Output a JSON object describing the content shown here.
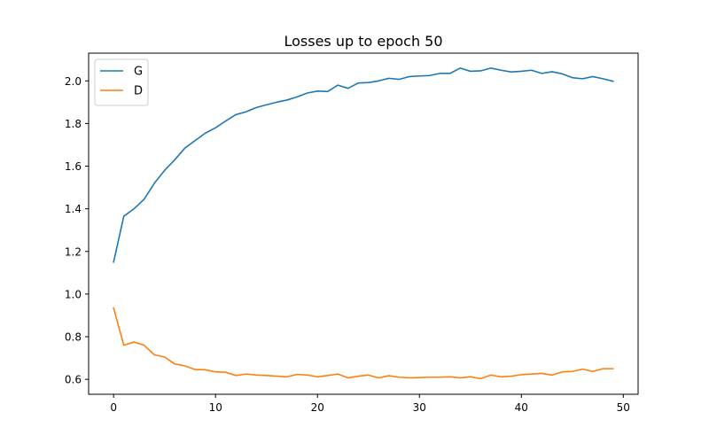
{
  "chart_data": {
    "type": "line",
    "title": "Losses up to epoch 50",
    "xlabel": "",
    "ylabel": "",
    "xlim": [
      -2.45,
      51.45
    ],
    "ylim": [
      0.53,
      2.13
    ],
    "xticks": [
      0,
      10,
      20,
      30,
      40,
      50
    ],
    "yticks": [
      0.6,
      0.8,
      1.0,
      1.2,
      1.4,
      1.6,
      1.8,
      2.0
    ],
    "ytick_labels": [
      "0.6",
      "0.8",
      "1.0",
      "1.2",
      "1.4",
      "1.6",
      "1.8",
      "2.0"
    ],
    "grid": false,
    "legend_position": "upper-left",
    "x": [
      0,
      1,
      2,
      3,
      4,
      5,
      6,
      7,
      8,
      9,
      10,
      11,
      12,
      13,
      14,
      15,
      16,
      17,
      18,
      19,
      20,
      21,
      22,
      23,
      24,
      25,
      26,
      27,
      28,
      29,
      30,
      31,
      32,
      33,
      34,
      35,
      36,
      37,
      38,
      39,
      40,
      41,
      42,
      43,
      44,
      45,
      46,
      47,
      48,
      49
    ],
    "series": [
      {
        "name": "G",
        "color": "#1f77b4",
        "values": [
          1.15,
          1.365,
          1.4,
          1.445,
          1.52,
          1.58,
          1.63,
          1.685,
          1.72,
          1.755,
          1.78,
          1.812,
          1.842,
          1.855,
          1.875,
          1.888,
          1.9,
          1.91,
          1.925,
          1.943,
          1.952,
          1.95,
          1.98,
          1.965,
          1.99,
          1.992,
          2.0,
          2.012,
          2.007,
          2.02,
          2.023,
          2.025,
          2.035,
          2.035,
          2.06,
          2.045,
          2.047,
          2.06,
          2.05,
          2.042,
          2.045,
          2.05,
          2.035,
          2.043,
          2.033,
          2.015,
          2.01,
          2.02,
          2.01,
          1.998
        ]
      },
      {
        "name": "D",
        "color": "#ff7f0e",
        "values": [
          0.935,
          0.76,
          0.775,
          0.76,
          0.715,
          0.705,
          0.672,
          0.663,
          0.646,
          0.645,
          0.635,
          0.633,
          0.618,
          0.625,
          0.62,
          0.618,
          0.615,
          0.612,
          0.623,
          0.62,
          0.612,
          0.618,
          0.625,
          0.607,
          0.615,
          0.62,
          0.607,
          0.617,
          0.61,
          0.607,
          0.608,
          0.61,
          0.61,
          0.612,
          0.607,
          0.612,
          0.603,
          0.62,
          0.612,
          0.615,
          0.622,
          0.625,
          0.628,
          0.62,
          0.635,
          0.637,
          0.648,
          0.637,
          0.65,
          0.65
        ]
      }
    ]
  }
}
